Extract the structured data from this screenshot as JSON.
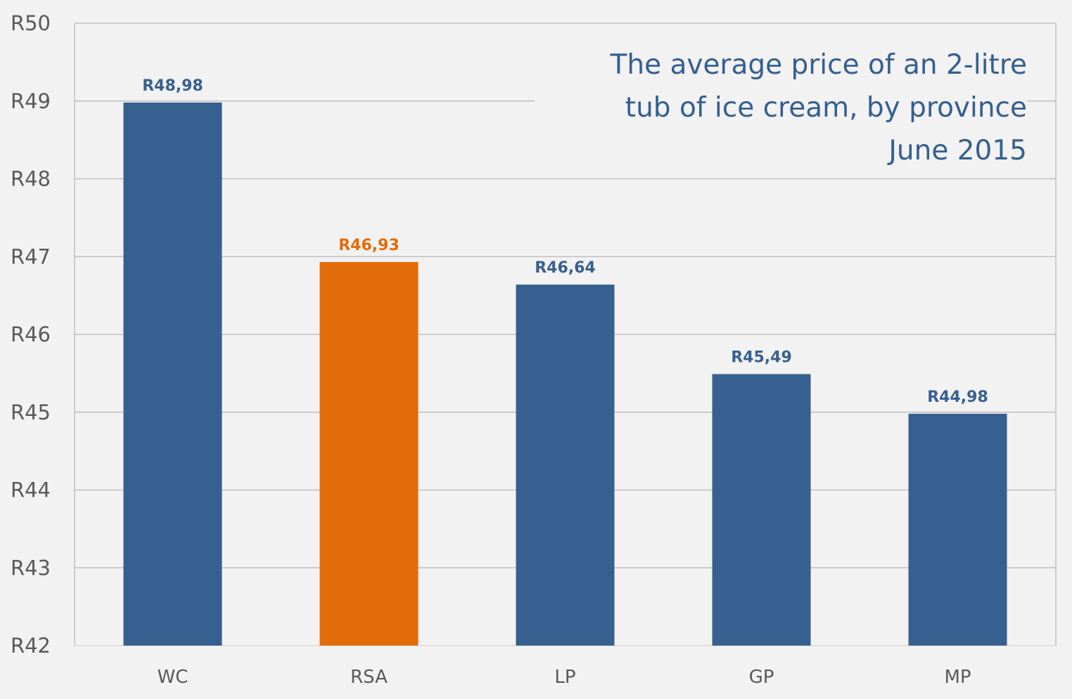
{
  "chart_data": {
    "type": "bar",
    "title_lines": [
      "The average price of an 2-litre",
      "tub of ice cream, by province",
      "June 2015"
    ],
    "categories": [
      "WC",
      "RSA",
      "LP",
      "GP",
      "MP"
    ],
    "values": [
      48.98,
      46.93,
      46.64,
      45.49,
      44.98
    ],
    "data_labels": [
      "R48,98",
      "R46,93",
      "R46,64",
      "R45,49",
      "R44,98"
    ],
    "highlight_category": "RSA",
    "xlabel": "",
    "ylabel": "",
    "ylim": [
      42,
      50
    ],
    "y_ticks": [
      42,
      43,
      44,
      45,
      46,
      47,
      48,
      49,
      50
    ],
    "y_tick_labels": [
      "R42",
      "R43",
      "R44",
      "R45",
      "R46",
      "R47",
      "R48",
      "R49",
      "R50"
    ],
    "grid": true,
    "legend": "none",
    "colors": {
      "bar": "#36608f",
      "highlight": "#e36c0a",
      "title": "#355f91",
      "axis_text": "#595959",
      "grid": "#bfbfbf",
      "background": "#f2f2f2"
    }
  }
}
